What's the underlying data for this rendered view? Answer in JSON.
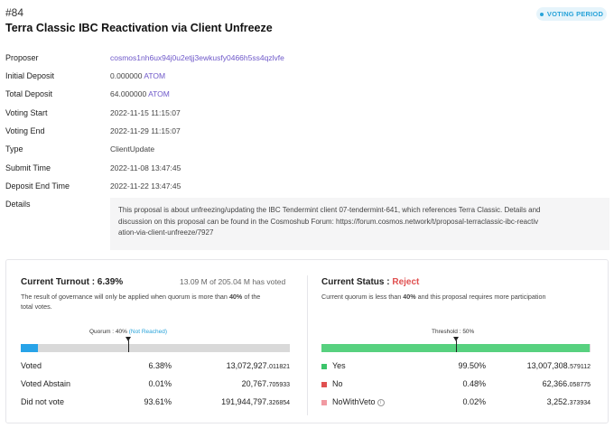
{
  "header": {
    "proposal_id": "#84",
    "title": "Terra Classic IBC Reactivation via Client Unfreeze",
    "status": "VOTING PERIOD"
  },
  "details": {
    "proposer_label": "Proposer",
    "proposer_value": "cosmos1nh6ux94j0u2etjj3ewkusfy0466h5ss4qzlvfe",
    "initial_deposit_label": "Initial Deposit",
    "initial_deposit_amount": "0.000000",
    "initial_deposit_unit": "ATOM",
    "total_deposit_label": "Total Deposit",
    "total_deposit_amount": "64.000000",
    "total_deposit_unit": "ATOM",
    "voting_start_label": "Voting Start",
    "voting_start_value": "2022-11-15 11:15:07",
    "voting_end_label": "Voting End",
    "voting_end_value": "2022-11-29 11:15:07",
    "type_label": "Type",
    "type_value": "ClientUpdate",
    "submit_time_label": "Submit Time",
    "submit_time_value": "2022-11-08 13:47:45",
    "deposit_end_label": "Deposit End Time",
    "deposit_end_value": "2022-11-22 13:47:45",
    "description_label": "Details",
    "description_lines": [
      "This proposal is about unfreezing/updating the IBC Tendermint client 07-tendermint-641, which references Terra Classic. Details and",
      "discussion on this proposal can be found in the Cosmoshub Forum: https://forum.cosmos.network/t/proposal-terraclassic-ibc-reactiv",
      "ation-via-client-unfreeze/7927"
    ]
  },
  "turnout": {
    "heading": "Current Turnout : 6.39%",
    "voted_info": "13.09 M of 205.04 M has voted",
    "note_pre": "The result of governance will only be applied when quorum is more than ",
    "note_bold": "40%",
    "note_post": " of the",
    "note_line2": "total votes.",
    "quorum_label": "Quorum : 40%",
    "quorum_status": "(Not Reached)",
    "quorum_fraction": 0.4,
    "turnout_fraction": 0.0639,
    "fill_color": "#28a3e8",
    "rows": [
      {
        "label": "Voted",
        "pct": "6.38%",
        "amount_int": "13,072,927.",
        "amount_dec": "011821"
      },
      {
        "label": "Voted Abstain",
        "pct": "0.01%",
        "amount_int": "20,767.",
        "amount_dec": "705933"
      },
      {
        "label": "Did not vote",
        "pct": "93.61%",
        "amount_int": "191,944,797.",
        "amount_dec": "326854"
      }
    ]
  },
  "status": {
    "heading_prefix": "Current Status : ",
    "heading_value": "Reject",
    "note_pre": "Current quorum is less than ",
    "note_bold": "40%",
    "note_post": " and this proposal requires more participation",
    "threshold_label": "Threshold : 50%",
    "threshold_fraction": 0.5,
    "yes_fraction": 0.995,
    "fill_color": "#57d17f",
    "rows": [
      {
        "label": "Yes",
        "pct": "99.50%",
        "amount_int": "13,007,308.",
        "amount_dec": "579112",
        "color": "#3cc46a"
      },
      {
        "label": "No",
        "pct": "0.48%",
        "amount_int": "62,366.",
        "amount_dec": "058775",
        "color": "#e05050"
      },
      {
        "label": "NoWithVeto",
        "pct": "0.02%",
        "amount_int": "3,252.",
        "amount_dec": "373934",
        "color": "#f19aa2"
      }
    ]
  }
}
